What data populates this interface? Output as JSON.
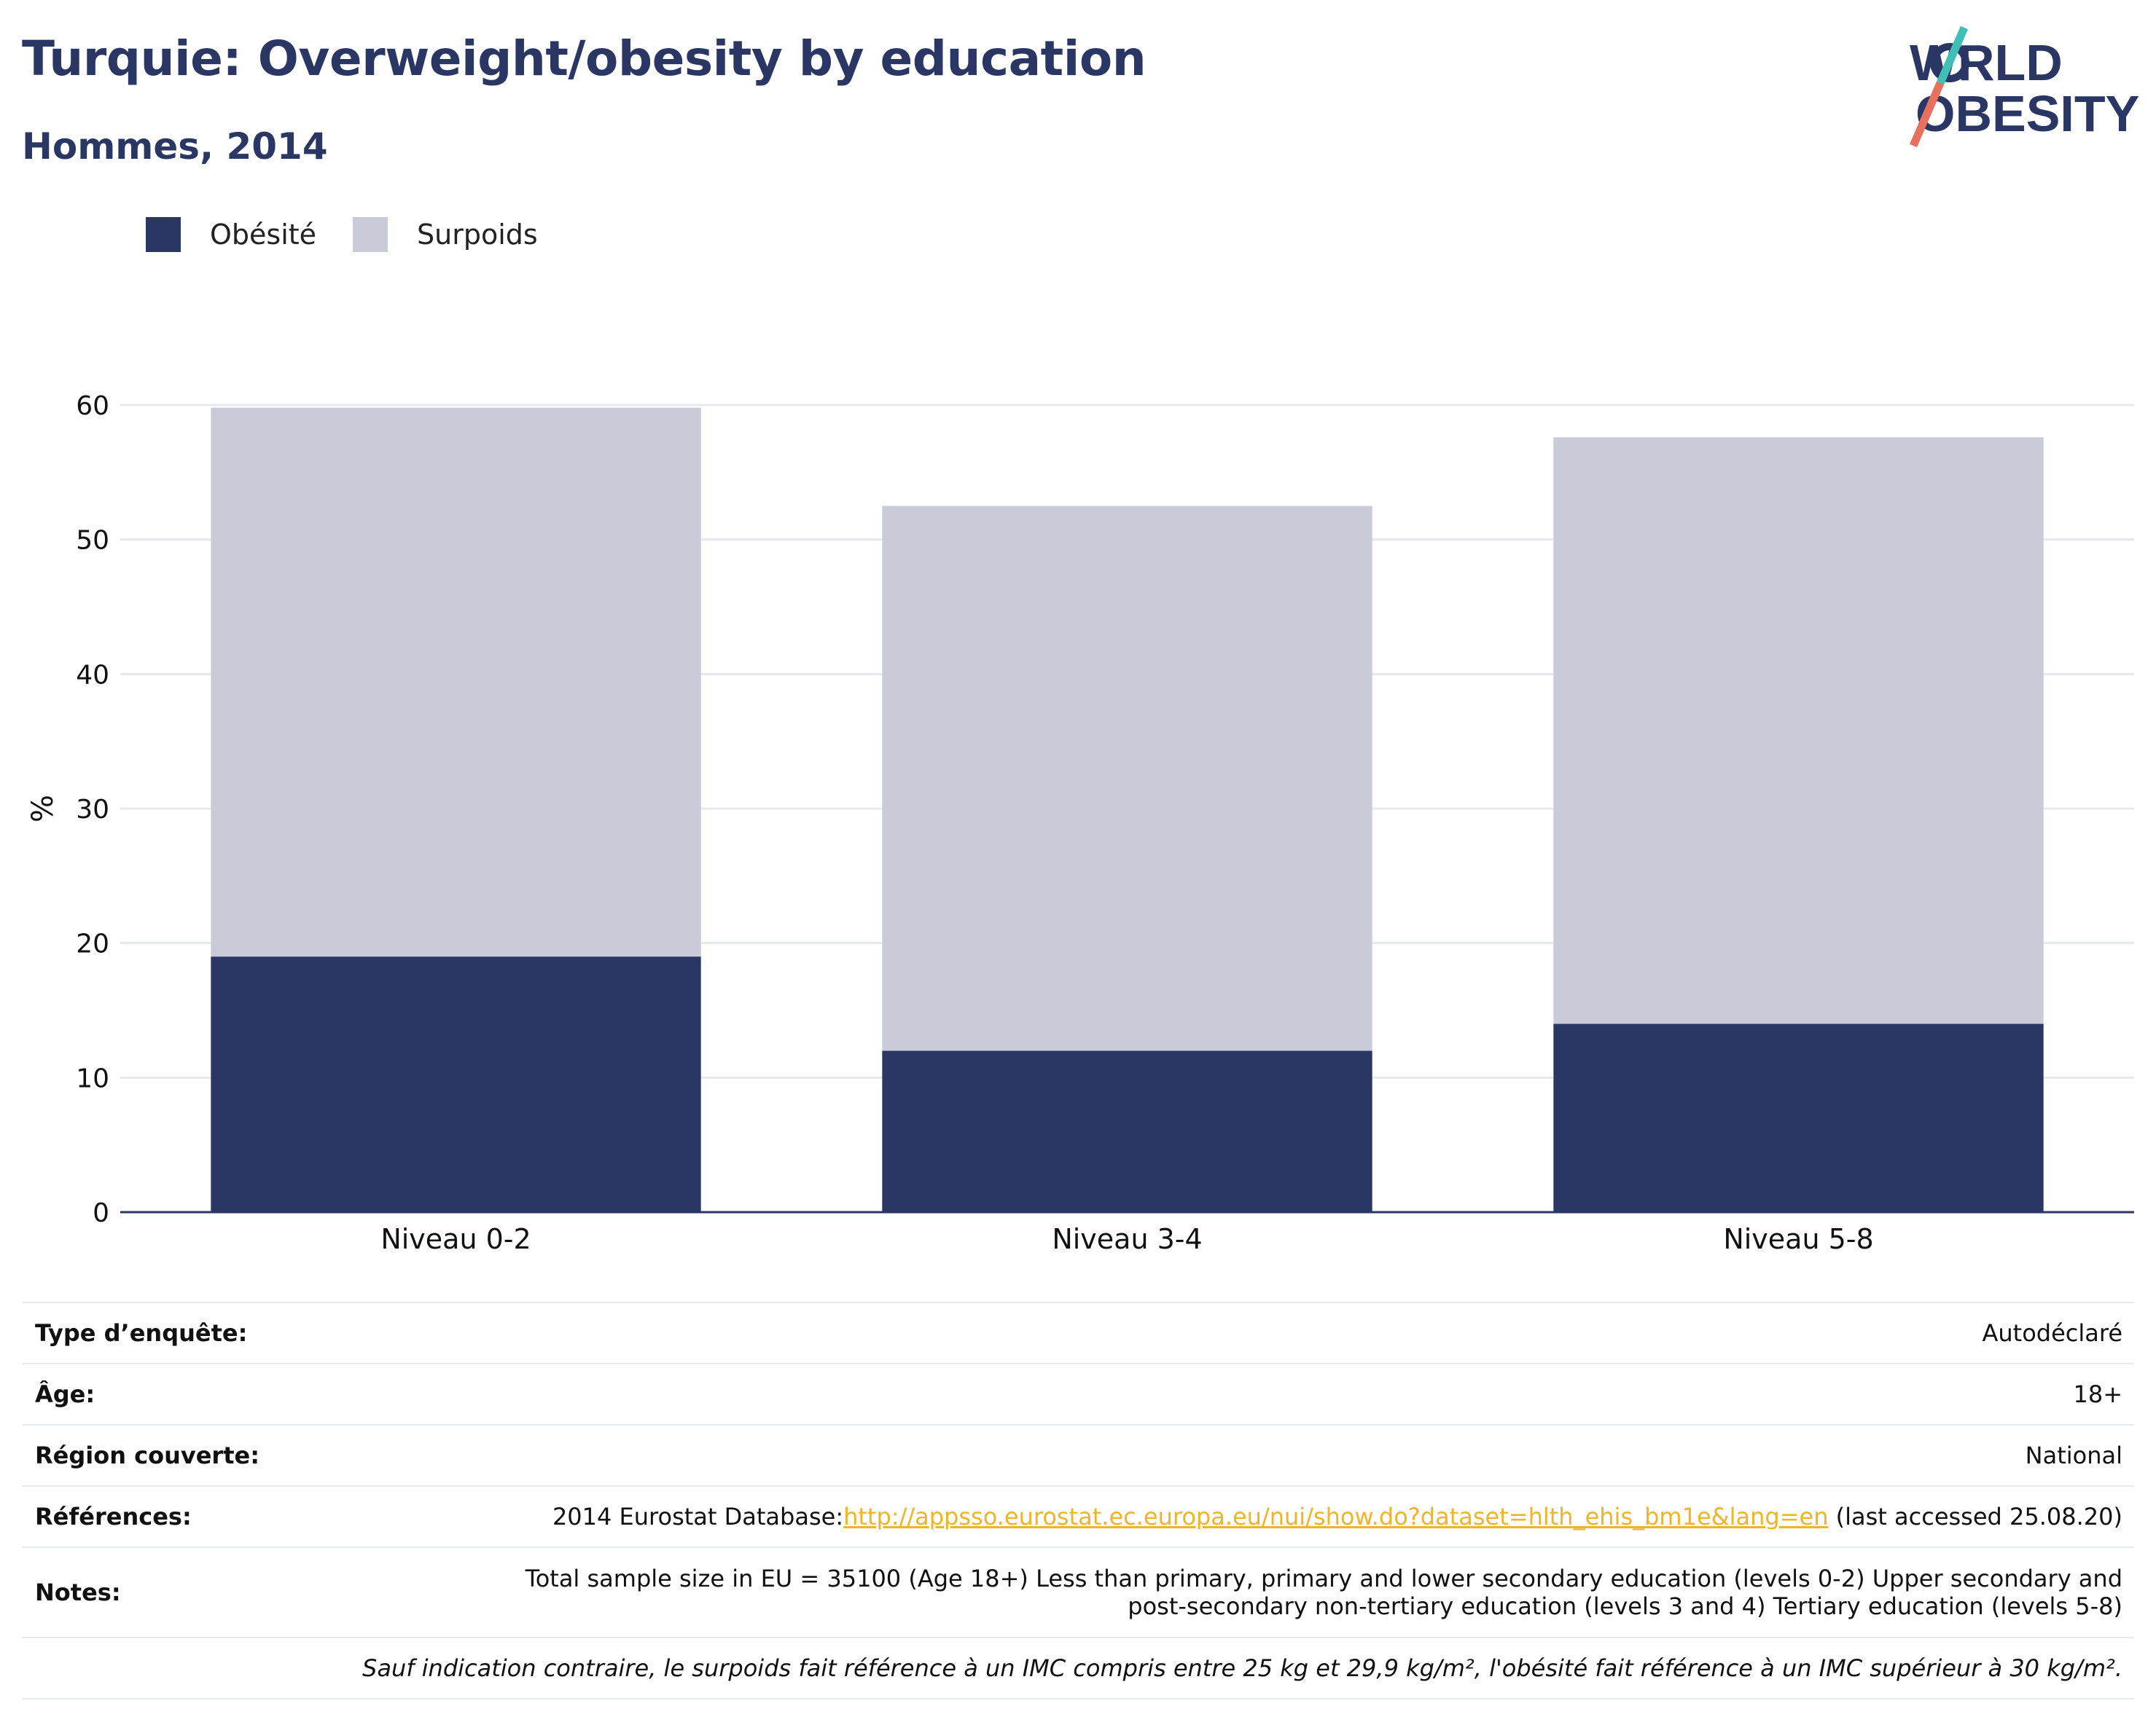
{
  "header": {
    "title": "Turquie: Overweight/obesity by education",
    "subtitle": "Hommes, 2014"
  },
  "logo": {
    "line1": "WORLD",
    "line2": "OBESITY"
  },
  "colors": {
    "obesity": "#2a3663",
    "overweight": "#c9ccd8",
    "axis": "#2a3663",
    "grid": "#e6e8ef",
    "link": "#f0b429"
  },
  "chart_data": {
    "type": "bar",
    "stacked": true,
    "categories": [
      "Niveau 0-2",
      "Niveau 3-4",
      "Niveau 5-8"
    ],
    "series": [
      {
        "name": "Obésité",
        "values": [
          19.0,
          12.0,
          14.0
        ]
      },
      {
        "name": "Surpoids",
        "values": [
          40.8,
          40.5,
          43.6
        ]
      }
    ],
    "totals": [
      59.8,
      52.5,
      57.6
    ],
    "ylabel": "%",
    "ylim": [
      0,
      60
    ],
    "yticks": [
      0,
      10,
      20,
      30,
      40,
      50,
      60
    ],
    "grid": true,
    "legend_position": "top-left"
  },
  "info": {
    "survey_label": "Type d’enquête:",
    "survey_value": "Autodéclaré",
    "age_label": "Âge:",
    "age_value": "18+",
    "region_label": "Région couverte:",
    "region_value": "National",
    "refs_label": "Références:",
    "refs_prefix": "2014 Eurostat Database:",
    "refs_link": "http://appsso.eurostat.ec.europa.eu/nui/show.do?dataset=hlth_ehis_bm1e&lang=en",
    "refs_suffix": " (last accessed 25.08.20)",
    "notes_label": "Notes:",
    "notes_line1": "Total sample size in EU = 35100 (Age 18+) Less than primary, primary and lower secondary education (levels 0-2) Upper secondary and",
    "notes_line2": "post-secondary non-tertiary education (levels 3 and 4) Tertiary education (levels 5-8)",
    "footnote": "Sauf indication contraire, le surpoids fait référence à un IMC compris entre 25 kg et 29,9 kg/m², l'obésité fait référence à un IMC supérieur à 30 kg/m²."
  }
}
